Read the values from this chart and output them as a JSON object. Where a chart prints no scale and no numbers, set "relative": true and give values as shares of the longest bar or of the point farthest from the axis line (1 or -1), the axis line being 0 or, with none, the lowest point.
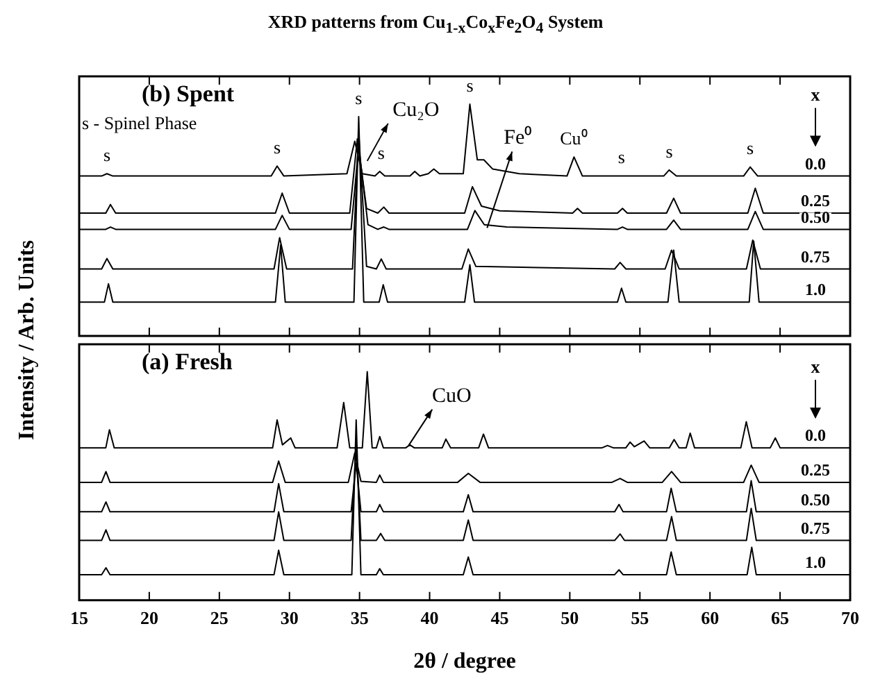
{
  "chart_data": [
    {
      "type": "line",
      "title": "XRD patterns from Cu$_{1-x}$Co$_{x}$Fe$_{2}$O$_{4}$ System",
      "ylabel": "Intensity / Arb. Units",
      "legend_title": "x",
      "relative": true,
      "xlim": [
        15,
        70
      ],
      "xticks": [
        15,
        20,
        25,
        30,
        35,
        40,
        45,
        50,
        55,
        60,
        65,
        70
      ],
      "tick_labels": false,
      "legend": "right",
      "grid": false,
      "annotations": [
        "(b) Spent",
        "s - Spinel Phase",
        {
          "text": "s",
          "x": 16.98,
          "y": 0.7
        },
        {
          "text": "s",
          "x": 29.12,
          "y": 0.733
        },
        {
          "text": "s",
          "x": 34.94,
          "y": 0.946
        },
        {
          "text": "s",
          "x": 36.55,
          "y": 0.71
        },
        {
          "text": "s",
          "x": 42.87,
          "y": 1.0
        },
        {
          "text": "s",
          "x": 53.69,
          "y": 0.69
        },
        {
          "text": "s",
          "x": 57.09,
          "y": 0.716
        },
        {
          "text": "s",
          "x": 62.87,
          "y": 0.729
        },
        {
          "text": "Cu₂O",
          "x": 35.55,
          "y": 0.755
        },
        {
          "text": "Fe⁰",
          "x": 44.1,
          "y": 0.466
        },
        {
          "text": "Cu⁰",
          "x": 50.3,
          "y": 0.772
        }
      ],
      "series": [
        {
          "name": "0.0",
          "color": "#000000",
          "x": [
            15,
            16.6,
            16.98,
            17.4,
            28.7,
            29.12,
            29.6,
            34.1,
            34.66,
            35.2,
            36.1,
            36.44,
            36.8,
            38.6,
            38.94,
            39.3,
            39.9,
            40.3,
            40.7,
            42.4,
            42.87,
            43.4,
            43.87,
            44.5,
            46.4,
            49.8,
            50.3,
            50.9,
            56.7,
            57.09,
            57.6,
            62.4,
            62.87,
            63.4,
            70
          ],
          "values": [
            0.69,
            0.69,
            0.7,
            0.69,
            0.69,
            0.733,
            0.69,
            0.7,
            0.84,
            0.7,
            0.69,
            0.71,
            0.69,
            0.69,
            0.71,
            0.69,
            0.7,
            0.72,
            0.7,
            0.7,
            1.0,
            0.76,
            0.76,
            0.72,
            0.7,
            0.69,
            0.772,
            0.69,
            0.69,
            0.716,
            0.69,
            0.69,
            0.729,
            0.69,
            0.69
          ]
        },
        {
          "name": "0.25",
          "color": "#000000",
          "x": [
            15,
            16.9,
            17.23,
            17.6,
            29.0,
            29.48,
            30.0,
            34.3,
            34.84,
            35.5,
            36.3,
            36.73,
            37.1,
            42.5,
            43.05,
            43.7,
            45,
            50.2,
            50.55,
            50.9,
            53.4,
            53.76,
            54.1,
            56.9,
            57.41,
            57.9,
            62.7,
            63.23,
            63.8,
            70
          ],
          "values": [
            0.53,
            0.53,
            0.567,
            0.53,
            0.53,
            0.616,
            0.53,
            0.53,
            0.85,
            0.55,
            0.53,
            0.556,
            0.53,
            0.53,
            0.644,
            0.56,
            0.54,
            0.53,
            0.55,
            0.53,
            0.53,
            0.55,
            0.53,
            0.53,
            0.594,
            0.53,
            0.53,
            0.637,
            0.53,
            0.53
          ]
        },
        {
          "name": "0.50",
          "color": "#000000",
          "x": [
            15,
            16.9,
            17.23,
            17.6,
            29.0,
            29.48,
            30.0,
            34.4,
            34.94,
            35.6,
            36.3,
            36.73,
            37.1,
            42.7,
            43.23,
            43.9,
            45.5,
            53.4,
            53.76,
            54.1,
            56.9,
            57.41,
            57.9,
            62.7,
            63.23,
            63.8,
            70
          ],
          "values": [
            0.46,
            0.46,
            0.47,
            0.46,
            0.46,
            0.52,
            0.46,
            0.46,
            0.82,
            0.48,
            0.46,
            0.47,
            0.46,
            0.46,
            0.541,
            0.48,
            0.47,
            0.46,
            0.47,
            0.46,
            0.46,
            0.5,
            0.46,
            0.46,
            0.537,
            0.46,
            0.46
          ]
        },
        {
          "name": "0.75",
          "color": "#000000",
          "x": [
            15,
            16.6,
            16.98,
            17.4,
            28.9,
            29.3,
            29.8,
            34.5,
            34.94,
            35.5,
            36.2,
            36.55,
            36.9,
            42.3,
            42.76,
            43.3,
            53.2,
            53.59,
            54.0,
            56.8,
            57.26,
            57.8,
            62.6,
            63.05,
            63.6,
            70
          ],
          "values": [
            0.289,
            0.289,
            0.334,
            0.289,
            0.289,
            0.424,
            0.289,
            0.289,
            0.88,
            0.3,
            0.289,
            0.332,
            0.289,
            0.289,
            0.375,
            0.3,
            0.289,
            0.317,
            0.289,
            0.289,
            0.37,
            0.289,
            0.289,
            0.413,
            0.289,
            0.289
          ]
        },
        {
          "name": "1.0",
          "color": "#000000",
          "x": [
            15,
            16.8,
            17.09,
            17.4,
            29.0,
            29.37,
            29.7,
            34.6,
            34.94,
            35.3,
            36.4,
            36.69,
            37.0,
            42.5,
            42.87,
            43.2,
            53.4,
            53.69,
            54.0,
            57.0,
            57.41,
            57.8,
            62.8,
            63.12,
            63.5,
            70
          ],
          "values": [
            0.146,
            0.146,
            0.225,
            0.146,
            0.146,
            0.392,
            0.146,
            0.146,
            0.946,
            0.146,
            0.146,
            0.221,
            0.146,
            0.146,
            0.307,
            0.146,
            0.146,
            0.206,
            0.146,
            0.146,
            0.37,
            0.146,
            0.146,
            0.409,
            0.146,
            0.146
          ]
        }
      ]
    },
    {
      "type": "line",
      "xlabel": "2θ / degree",
      "legend_title": "x",
      "relative": true,
      "xlim": [
        15,
        70
      ],
      "xticks": [
        15,
        20,
        25,
        30,
        35,
        40,
        45,
        50,
        55,
        60,
        65,
        70
      ],
      "tick_labels": "x",
      "legend": "right",
      "grid": false,
      "annotations": [
        "(a) Fresh",
        {
          "text": "CuO",
          "x": 38.5,
          "y": 0.677
        }
      ],
      "series": [
        {
          "name": "0.0",
          "color": "#000000",
          "x": [
            15,
            16.9,
            17.16,
            17.5,
            28.8,
            29.12,
            29.5,
            30.09,
            30.4,
            33.4,
            33.87,
            34.3,
            35.2,
            35.55,
            35.9,
            36.2,
            36.44,
            36.7,
            38.3,
            38.59,
            38.9,
            40.9,
            41.16,
            41.5,
            43.5,
            43.84,
            44.2,
            52.3,
            52.69,
            53.1,
            54.0,
            54.3,
            54.6,
            55.3,
            55.7,
            57.1,
            57.44,
            57.8,
            58.3,
            58.59,
            58.9,
            62.2,
            62.59,
            63.0,
            64.3,
            64.66,
            65.0,
            70
          ],
          "values": [
            0.667,
            0.667,
            0.746,
            0.667,
            0.667,
            0.789,
            0.68,
            0.71,
            0.667,
            0.667,
            0.865,
            0.667,
            0.667,
            1.0,
            0.667,
            0.667,
            0.716,
            0.667,
            0.667,
            0.68,
            0.667,
            0.667,
            0.705,
            0.667,
            0.667,
            0.727,
            0.667,
            0.667,
            0.677,
            0.667,
            0.667,
            0.692,
            0.672,
            0.697,
            0.667,
            0.667,
            0.703,
            0.667,
            0.667,
            0.731,
            0.667,
            0.667,
            0.781,
            0.667,
            0.667,
            0.71,
            0.667,
            0.667
          ]
        },
        {
          "name": "0.25",
          "color": "#000000",
          "x": [
            15,
            16.6,
            16.91,
            17.2,
            28.8,
            29.23,
            29.7,
            34.2,
            34.66,
            35.1,
            36.2,
            36.44,
            36.7,
            42.0,
            42.76,
            43.6,
            53.0,
            53.59,
            54.1,
            56.6,
            57.26,
            57.9,
            62.4,
            62.94,
            63.5,
            70
          ],
          "values": [
            0.516,
            0.516,
            0.563,
            0.516,
            0.516,
            0.609,
            0.516,
            0.516,
            0.645,
            0.52,
            0.516,
            0.548,
            0.516,
            0.516,
            0.555,
            0.516,
            0.516,
            0.533,
            0.516,
            0.516,
            0.563,
            0.516,
            0.516,
            0.591,
            0.516,
            0.516
          ]
        },
        {
          "name": "0.50",
          "color": "#000000",
          "x": [
            15,
            16.6,
            16.91,
            17.2,
            28.9,
            29.23,
            29.6,
            34.4,
            34.76,
            35.1,
            36.2,
            36.44,
            36.7,
            42.4,
            42.76,
            43.1,
            53.2,
            53.51,
            53.8,
            56.9,
            57.23,
            57.6,
            62.6,
            62.94,
            63.3,
            70
          ],
          "values": [
            0.387,
            0.387,
            0.43,
            0.387,
            0.387,
            0.51,
            0.387,
            0.387,
            0.6,
            0.387,
            0.387,
            0.419,
            0.387,
            0.387,
            0.462,
            0.387,
            0.387,
            0.419,
            0.387,
            0.387,
            0.49,
            0.387,
            0.387,
            0.523,
            0.387,
            0.387
          ]
        },
        {
          "name": "0.75",
          "color": "#000000",
          "x": [
            15,
            16.6,
            16.91,
            17.2,
            28.9,
            29.23,
            29.6,
            34.4,
            34.76,
            35.1,
            36.2,
            36.51,
            36.8,
            42.4,
            42.76,
            43.1,
            53.2,
            53.59,
            53.9,
            56.9,
            57.26,
            57.6,
            62.6,
            62.94,
            63.3,
            70
          ],
          "values": [
            0.262,
            0.262,
            0.308,
            0.262,
            0.262,
            0.387,
            0.262,
            0.262,
            0.69,
            0.262,
            0.262,
            0.292,
            0.262,
            0.262,
            0.351,
            0.262,
            0.262,
            0.29,
            0.262,
            0.262,
            0.366,
            0.262,
            0.262,
            0.402,
            0.262,
            0.262
          ]
        },
        {
          "name": "1.0",
          "color": "#000000",
          "x": [
            15,
            16.6,
            16.91,
            17.2,
            28.9,
            29.23,
            29.6,
            34.45,
            34.76,
            35.1,
            36.2,
            36.44,
            36.7,
            42.4,
            42.76,
            43.1,
            53.2,
            53.51,
            53.8,
            56.9,
            57.23,
            57.6,
            62.65,
            62.98,
            63.3,
            70
          ],
          "values": [
            0.112,
            0.112,
            0.142,
            0.112,
            0.112,
            0.219,
            0.112,
            0.112,
            0.789,
            0.112,
            0.112,
            0.138,
            0.112,
            0.112,
            0.189,
            0.112,
            0.112,
            0.133,
            0.112,
            0.112,
            0.211,
            0.112,
            0.112,
            0.232,
            0.112,
            0.112
          ]
        }
      ]
    }
  ]
}
